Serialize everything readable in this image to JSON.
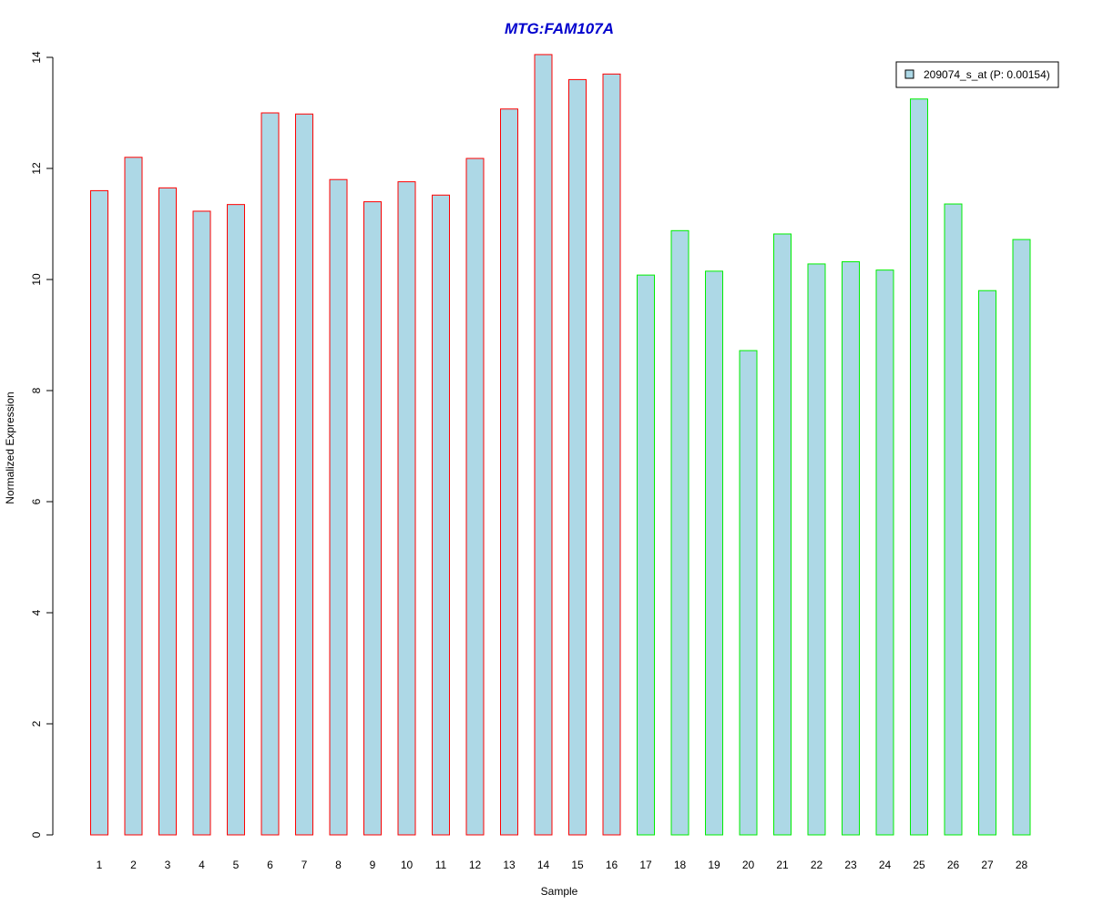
{
  "chart_data": {
    "type": "bar",
    "title": "MTG:FAM107A",
    "xlabel": "Sample",
    "ylabel": "Normalized Expression",
    "categories": [
      "1",
      "2",
      "3",
      "4",
      "5",
      "6",
      "7",
      "8",
      "9",
      "10",
      "11",
      "12",
      "13",
      "14",
      "15",
      "16",
      "17",
      "18",
      "19",
      "20",
      "21",
      "22",
      "23",
      "24",
      "25",
      "26",
      "27",
      "28"
    ],
    "series": [
      {
        "name": "209074_s_at (P: 0.00154)",
        "values": [
          11.6,
          12.2,
          11.65,
          11.23,
          11.35,
          13.0,
          12.98,
          11.8,
          11.4,
          11.76,
          11.52,
          12.18,
          13.07,
          14.05,
          13.6,
          13.7,
          10.08,
          10.88,
          10.15,
          8.72,
          10.82,
          10.28,
          10.32,
          10.17,
          13.25,
          11.36,
          9.8,
          10.72
        ]
      }
    ],
    "groups": [
      {
        "from": 1,
        "to": 16,
        "border_color": "#ff0000"
      },
      {
        "from": 17,
        "to": 28,
        "border_color": "#00ee00"
      }
    ],
    "ylim": [
      0,
      14
    ],
    "yticks": [
      0,
      2,
      4,
      6,
      8,
      10,
      12,
      14
    ],
    "bar_fill": "#add8e6",
    "title_color": "#0000cd",
    "legend_position": "top-right",
    "grid": false
  }
}
